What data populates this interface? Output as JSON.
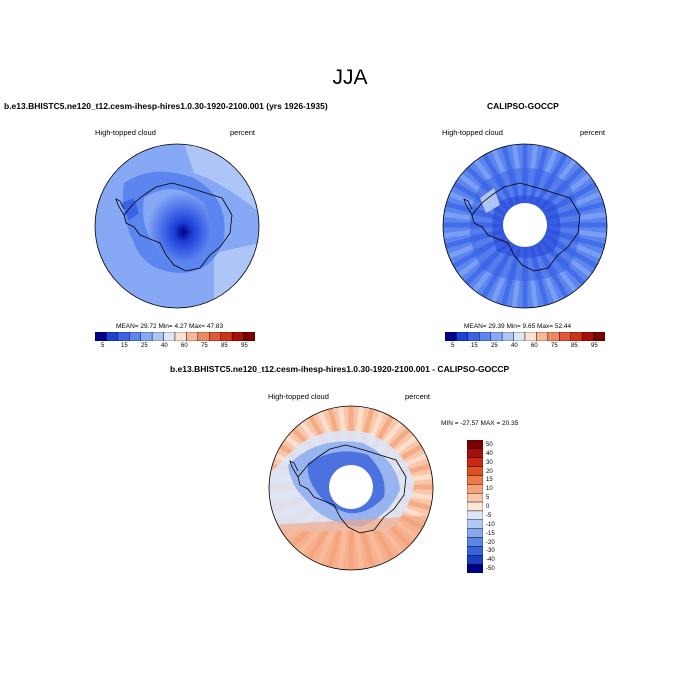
{
  "season": "JJA",
  "panels": [
    {
      "title": "b.e13.BHISTC5.ne120_t12.cesm-ihesp-hires1.0.30-1920-2100.001 (yrs 1926-1935)",
      "left_label": "High-topped cloud",
      "right_label": "percent",
      "stats": "MEAN= 29.72  Min=   4.27  Max= 47.83",
      "colorbar_ticks": [
        "5",
        "15",
        "25",
        "40",
        "60",
        "75",
        "85",
        "95"
      ]
    },
    {
      "title": "CALIPSO-GOCCP",
      "left_label": "High-topped cloud",
      "right_label": "percent",
      "stats": "MEAN= 29.39  Min=   9.65  Max= 52.44",
      "colorbar_ticks": [
        "5",
        "15",
        "25",
        "40",
        "60",
        "75",
        "85",
        "95"
      ]
    },
    {
      "title": "b.e13.BHISTC5.ne120_t12.cesm-ihesp-hires1.0.30-1920-2100.001 - CALIPSO-GOCCP",
      "left_label": "High-topped cloud",
      "right_label": "percent",
      "stats": "MIN = -27.57 MAX =  20.35",
      "colorbar_ticks": [
        "50",
        "40",
        "30",
        "20",
        "15",
        "10",
        "5",
        "0",
        "-5",
        "-10",
        "-15",
        "-20",
        "-30",
        "-40",
        "-50"
      ]
    }
  ],
  "colors": {
    "abs_scale": [
      "#00008b",
      "#1f3fd6",
      "#3b63e6",
      "#5b86f0",
      "#86a8f5",
      "#aec6f7",
      "#dbe6fb",
      "#fde2d2",
      "#f7b896",
      "#ee8a63",
      "#e0593a",
      "#cc3318",
      "#a80f08",
      "#7a0000"
    ],
    "diff_scale": [
      "#7a0000",
      "#a80f08",
      "#c8290f",
      "#e04f22",
      "#ee7a46",
      "#f5a27a",
      "#f9c6aa",
      "#fde6d8",
      "#dbe6fb",
      "#b2c9f5",
      "#86a8f0",
      "#5b86e8",
      "#3a62dc",
      "#1d3fc6",
      "#00008b"
    ]
  }
}
